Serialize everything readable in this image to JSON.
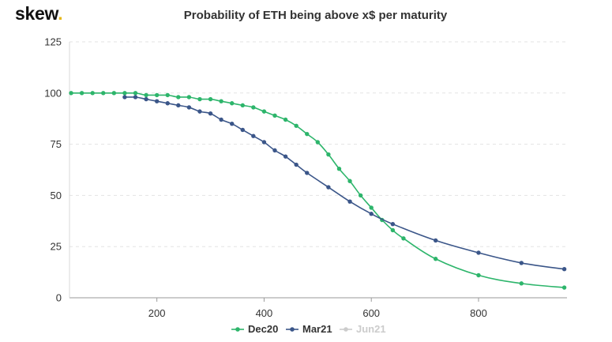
{
  "brand": {
    "name": "skew",
    "dot": "."
  },
  "colors": {
    "brand_dot": "#e6b81a"
  },
  "chart_data": {
    "type": "line",
    "title": "Probability of ETH being above x$ per maturity",
    "xlabel": "",
    "ylabel": "",
    "xlim": [
      37,
      965
    ],
    "ylim": [
      0,
      125
    ],
    "x_ticks": [
      200,
      400,
      600,
      800
    ],
    "y_ticks": [
      0,
      25,
      50,
      75,
      100,
      125
    ],
    "grid": true,
    "legend_position": "bottom-center",
    "series": [
      {
        "name": "Dec20",
        "color": "#2db56b",
        "visible": true,
        "points": [
          [
            40,
            100
          ],
          [
            60,
            100
          ],
          [
            80,
            100
          ],
          [
            100,
            100
          ],
          [
            120,
            100
          ],
          [
            140,
            100
          ],
          [
            160,
            100
          ],
          [
            180,
            99
          ],
          [
            200,
            99
          ],
          [
            220,
            99
          ],
          [
            240,
            98
          ],
          [
            260,
            98
          ],
          [
            280,
            97
          ],
          [
            300,
            97
          ],
          [
            320,
            96
          ],
          [
            340,
            95
          ],
          [
            360,
            94
          ],
          [
            380,
            93
          ],
          [
            400,
            91
          ],
          [
            420,
            89
          ],
          [
            440,
            87
          ],
          [
            460,
            84
          ],
          [
            480,
            80
          ],
          [
            500,
            76
          ],
          [
            520,
            70
          ],
          [
            540,
            63
          ],
          [
            560,
            57
          ],
          [
            580,
            50
          ],
          [
            600,
            44
          ],
          [
            620,
            38
          ],
          [
            640,
            33
          ],
          [
            660,
            29
          ],
          [
            720,
            19
          ],
          [
            800,
            11
          ],
          [
            880,
            7
          ],
          [
            960,
            5
          ]
        ]
      },
      {
        "name": "Mar21",
        "color": "#3b5689",
        "visible": true,
        "points": [
          [
            140,
            98
          ],
          [
            160,
            98
          ],
          [
            180,
            97
          ],
          [
            200,
            96
          ],
          [
            220,
            95
          ],
          [
            240,
            94
          ],
          [
            260,
            93
          ],
          [
            280,
            91
          ],
          [
            300,
            90
          ],
          [
            320,
            87
          ],
          [
            340,
            85
          ],
          [
            360,
            82
          ],
          [
            380,
            79
          ],
          [
            400,
            76
          ],
          [
            420,
            72
          ],
          [
            440,
            69
          ],
          [
            460,
            65
          ],
          [
            480,
            61
          ],
          [
            520,
            54
          ],
          [
            560,
            47
          ],
          [
            600,
            41
          ],
          [
            640,
            36
          ],
          [
            720,
            28
          ],
          [
            800,
            22
          ],
          [
            880,
            17
          ],
          [
            960,
            14
          ]
        ]
      },
      {
        "name": "Jun21",
        "color": "#cccccc",
        "visible": false,
        "points": []
      }
    ]
  }
}
